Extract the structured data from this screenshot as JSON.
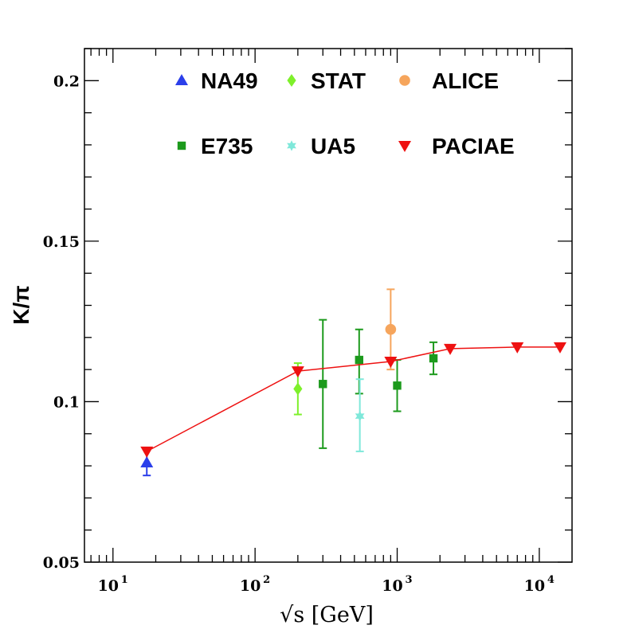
{
  "chart_data": {
    "type": "scatter",
    "title": "",
    "xlabel": "√s [GeV]",
    "ylabel": "K/π",
    "xscale": "log",
    "xlim": [
      6.3,
      17000
    ],
    "ylim": [
      0.05,
      0.21
    ],
    "yticks": [
      "0.05",
      "0.1",
      "0.15",
      "0.2"
    ],
    "xticks": [
      {
        "base": "10",
        "exp": "1"
      },
      {
        "base": "10",
        "exp": "2"
      },
      {
        "base": "10",
        "exp": "3"
      },
      {
        "base": "10",
        "exp": "4"
      }
    ],
    "legend_position": "top",
    "series": [
      {
        "name": "NA49",
        "color": "#2b3fea",
        "marker": "triangle-up",
        "points": [
          {
            "x": 17.3,
            "y": 0.081,
            "lo": 0.077,
            "hi": 0.085
          }
        ]
      },
      {
        "name": "STAT",
        "color": "#7ef02b",
        "marker": "diamond",
        "points": [
          {
            "x": 200,
            "y": 0.104,
            "lo": 0.096,
            "hi": 0.112
          }
        ]
      },
      {
        "name": "ALICE",
        "color": "#f6a55c",
        "marker": "circle",
        "points": [
          {
            "x": 900,
            "y": 0.1225,
            "lo": 0.11,
            "hi": 0.135
          }
        ]
      },
      {
        "name": "E735",
        "color": "#1c9a1c",
        "marker": "square",
        "points": [
          {
            "x": 300,
            "y": 0.1055,
            "lo": 0.0855,
            "hi": 0.1255
          },
          {
            "x": 540,
            "y": 0.113,
            "lo": 0.1025,
            "hi": 0.1225
          },
          {
            "x": 1000,
            "y": 0.105,
            "lo": 0.097,
            "hi": 0.113
          },
          {
            "x": 1800,
            "y": 0.1135,
            "lo": 0.1085,
            "hi": 0.1185
          }
        ]
      },
      {
        "name": "UA5",
        "color": "#7fe8da",
        "marker": "star",
        "points": [
          {
            "x": 546,
            "y": 0.0955,
            "lo": 0.0845,
            "hi": 0.107
          }
        ]
      },
      {
        "name": "PACIAE",
        "color": "#ee1111",
        "marker": "triangle-down",
        "line": true,
        "points": [
          {
            "x": 17.3,
            "y": 0.0845
          },
          {
            "x": 200,
            "y": 0.1095
          },
          {
            "x": 900,
            "y": 0.1125
          },
          {
            "x": 2360,
            "y": 0.1165
          },
          {
            "x": 7000,
            "y": 0.117
          },
          {
            "x": 14000,
            "y": 0.117
          }
        ]
      }
    ]
  }
}
